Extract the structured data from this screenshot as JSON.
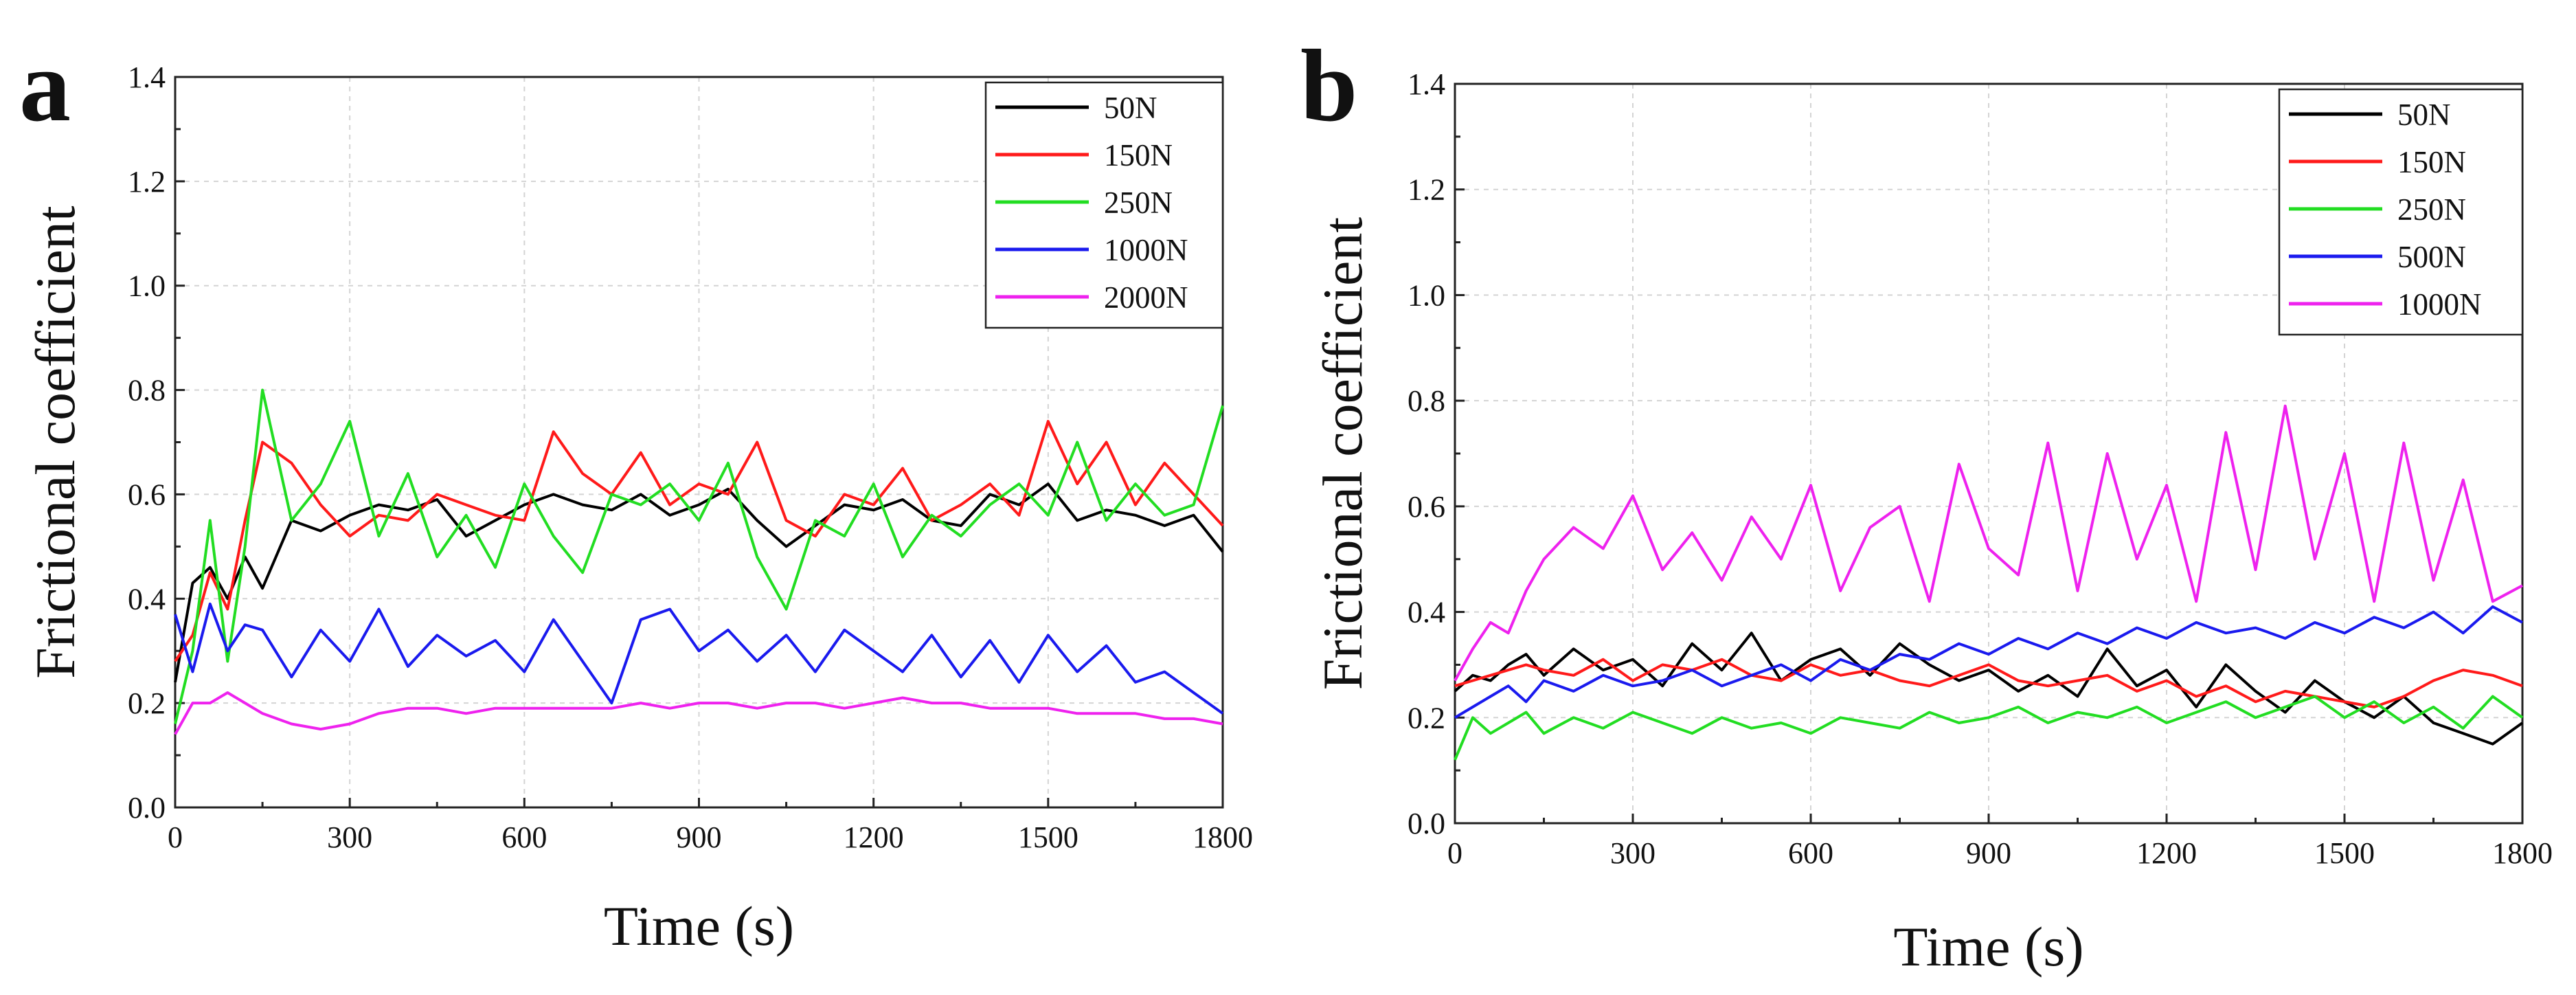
{
  "chart_data": [
    {
      "type": "line",
      "panel_label": "a",
      "title": "",
      "xlabel": "Time (s)",
      "ylabel": "Frictional coefficient",
      "xlim": [
        0,
        1800
      ],
      "ylim": [
        0.0,
        1.4
      ],
      "xticks": [
        0,
        300,
        600,
        900,
        1200,
        1500,
        1800
      ],
      "yticks": [
        0.0,
        0.2,
        0.4,
        0.6,
        0.8,
        1.0,
        1.2,
        1.4
      ],
      "xtick_labels": [
        "0",
        "300",
        "600",
        "900",
        "1200",
        "1500",
        "1800"
      ],
      "ytick_labels": [
        "0.0",
        "0.2",
        "0.4",
        "0.6",
        "0.8",
        "1.0",
        "1.2",
        "1.4"
      ],
      "grid": true,
      "legend_position": "top-right",
      "series": [
        {
          "name": "50N",
          "color": "#000000",
          "x": [
            0,
            30,
            60,
            90,
            120,
            150,
            200,
            250,
            300,
            350,
            400,
            450,
            500,
            550,
            600,
            650,
            700,
            750,
            800,
            850,
            900,
            950,
            1000,
            1050,
            1100,
            1150,
            1200,
            1250,
            1300,
            1350,
            1400,
            1450,
            1500,
            1550,
            1600,
            1650,
            1700,
            1750,
            1800
          ],
          "values": [
            0.24,
            0.43,
            0.46,
            0.4,
            0.48,
            0.42,
            0.55,
            0.53,
            0.56,
            0.58,
            0.57,
            0.59,
            0.52,
            0.55,
            0.58,
            0.6,
            0.58,
            0.57,
            0.6,
            0.56,
            0.58,
            0.61,
            0.55,
            0.5,
            0.54,
            0.58,
            0.57,
            0.59,
            0.55,
            0.54,
            0.6,
            0.58,
            0.62,
            0.55,
            0.57,
            0.56,
            0.54,
            0.56,
            0.49
          ]
        },
        {
          "name": "150N",
          "color": "#ff1a1a",
          "x": [
            0,
            30,
            60,
            90,
            120,
            150,
            200,
            250,
            300,
            350,
            400,
            450,
            500,
            550,
            600,
            650,
            700,
            750,
            800,
            850,
            900,
            950,
            1000,
            1050,
            1100,
            1150,
            1200,
            1250,
            1300,
            1350,
            1400,
            1450,
            1500,
            1550,
            1600,
            1650,
            1700,
            1750,
            1800
          ],
          "values": [
            0.28,
            0.33,
            0.45,
            0.38,
            0.55,
            0.7,
            0.66,
            0.58,
            0.52,
            0.56,
            0.55,
            0.6,
            0.58,
            0.56,
            0.55,
            0.72,
            0.64,
            0.6,
            0.68,
            0.58,
            0.62,
            0.6,
            0.7,
            0.55,
            0.52,
            0.6,
            0.58,
            0.65,
            0.55,
            0.58,
            0.62,
            0.56,
            0.74,
            0.62,
            0.7,
            0.58,
            0.66,
            0.6,
            0.54
          ]
        },
        {
          "name": "250N",
          "color": "#22dd22",
          "x": [
            0,
            30,
            60,
            90,
            120,
            150,
            200,
            250,
            300,
            350,
            400,
            450,
            500,
            550,
            600,
            650,
            700,
            750,
            800,
            850,
            900,
            950,
            1000,
            1050,
            1100,
            1150,
            1200,
            1250,
            1300,
            1350,
            1400,
            1450,
            1500,
            1550,
            1600,
            1650,
            1700,
            1750,
            1800
          ],
          "values": [
            0.16,
            0.3,
            0.55,
            0.28,
            0.5,
            0.8,
            0.55,
            0.62,
            0.74,
            0.52,
            0.64,
            0.48,
            0.56,
            0.46,
            0.62,
            0.52,
            0.45,
            0.6,
            0.58,
            0.62,
            0.55,
            0.66,
            0.48,
            0.38,
            0.55,
            0.52,
            0.62,
            0.48,
            0.56,
            0.52,
            0.58,
            0.62,
            0.56,
            0.7,
            0.55,
            0.62,
            0.56,
            0.58,
            0.77
          ]
        },
        {
          "name": "1000N",
          "color": "#1a1aee",
          "x": [
            0,
            30,
            60,
            90,
            120,
            150,
            200,
            250,
            300,
            350,
            400,
            450,
            500,
            550,
            600,
            650,
            700,
            750,
            800,
            850,
            900,
            950,
            1000,
            1050,
            1100,
            1150,
            1200,
            1250,
            1300,
            1350,
            1400,
            1450,
            1500,
            1550,
            1600,
            1650,
            1700,
            1750,
            1800
          ],
          "values": [
            0.37,
            0.26,
            0.39,
            0.3,
            0.35,
            0.34,
            0.25,
            0.34,
            0.28,
            0.38,
            0.27,
            0.33,
            0.29,
            0.32,
            0.26,
            0.36,
            0.28,
            0.2,
            0.36,
            0.38,
            0.3,
            0.34,
            0.28,
            0.33,
            0.26,
            0.34,
            0.3,
            0.26,
            0.33,
            0.25,
            0.32,
            0.24,
            0.33,
            0.26,
            0.31,
            0.24,
            0.26,
            0.22,
            0.18
          ]
        },
        {
          "name": "2000N",
          "color": "#ee22ee",
          "x": [
            0,
            30,
            60,
            90,
            120,
            150,
            200,
            250,
            300,
            350,
            400,
            450,
            500,
            550,
            600,
            650,
            700,
            750,
            800,
            850,
            900,
            950,
            1000,
            1050,
            1100,
            1150,
            1200,
            1250,
            1300,
            1350,
            1400,
            1450,
            1500,
            1550,
            1600,
            1650,
            1700,
            1750,
            1800
          ],
          "values": [
            0.14,
            0.2,
            0.2,
            0.22,
            0.2,
            0.18,
            0.16,
            0.15,
            0.16,
            0.18,
            0.19,
            0.19,
            0.18,
            0.19,
            0.19,
            0.19,
            0.19,
            0.19,
            0.2,
            0.19,
            0.2,
            0.2,
            0.19,
            0.2,
            0.2,
            0.19,
            0.2,
            0.21,
            0.2,
            0.2,
            0.19,
            0.19,
            0.19,
            0.18,
            0.18,
            0.18,
            0.17,
            0.17,
            0.16
          ]
        }
      ]
    },
    {
      "type": "line",
      "panel_label": "b",
      "title": "",
      "xlabel": "Time (s)",
      "ylabel": "Frictional coefficient",
      "xlim": [
        0,
        1800
      ],
      "ylim": [
        0.0,
        1.4
      ],
      "xticks": [
        0,
        300,
        600,
        900,
        1200,
        1500,
        1800
      ],
      "yticks": [
        0.0,
        0.2,
        0.4,
        0.6,
        0.8,
        1.0,
        1.2,
        1.4
      ],
      "xtick_labels": [
        "0",
        "300",
        "600",
        "900",
        "1200",
        "1500",
        "1800"
      ],
      "ytick_labels": [
        "0.0",
        "0.2",
        "0.4",
        "0.6",
        "0.8",
        "1.0",
        "1.2",
        "1.4"
      ],
      "grid": true,
      "legend_position": "top-right",
      "series": [
        {
          "name": "50N",
          "color": "#000000",
          "x": [
            0,
            30,
            60,
            90,
            120,
            150,
            200,
            250,
            300,
            350,
            400,
            450,
            500,
            550,
            600,
            650,
            700,
            750,
            800,
            850,
            900,
            950,
            1000,
            1050,
            1100,
            1150,
            1200,
            1250,
            1300,
            1350,
            1400,
            1450,
            1500,
            1550,
            1600,
            1650,
            1700,
            1750,
            1800
          ],
          "values": [
            0.25,
            0.28,
            0.27,
            0.3,
            0.32,
            0.28,
            0.33,
            0.29,
            0.31,
            0.26,
            0.34,
            0.29,
            0.36,
            0.27,
            0.31,
            0.33,
            0.28,
            0.34,
            0.3,
            0.27,
            0.29,
            0.25,
            0.28,
            0.24,
            0.33,
            0.26,
            0.29,
            0.22,
            0.3,
            0.25,
            0.21,
            0.27,
            0.23,
            0.2,
            0.24,
            0.19,
            0.17,
            0.15,
            0.19
          ]
        },
        {
          "name": "150N",
          "color": "#ff1a1a",
          "x": [
            0,
            30,
            60,
            90,
            120,
            150,
            200,
            250,
            300,
            350,
            400,
            450,
            500,
            550,
            600,
            650,
            700,
            750,
            800,
            850,
            900,
            950,
            1000,
            1050,
            1100,
            1150,
            1200,
            1250,
            1300,
            1350,
            1400,
            1450,
            1500,
            1550,
            1600,
            1650,
            1700,
            1750,
            1800
          ],
          "values": [
            0.26,
            0.27,
            0.28,
            0.29,
            0.3,
            0.29,
            0.28,
            0.31,
            0.27,
            0.3,
            0.29,
            0.31,
            0.28,
            0.27,
            0.3,
            0.28,
            0.29,
            0.27,
            0.26,
            0.28,
            0.3,
            0.27,
            0.26,
            0.27,
            0.28,
            0.25,
            0.27,
            0.24,
            0.26,
            0.23,
            0.25,
            0.24,
            0.23,
            0.22,
            0.24,
            0.27,
            0.29,
            0.28,
            0.26
          ]
        },
        {
          "name": "250N",
          "color": "#22dd22",
          "x": [
            0,
            30,
            60,
            90,
            120,
            150,
            200,
            250,
            300,
            350,
            400,
            450,
            500,
            550,
            600,
            650,
            700,
            750,
            800,
            850,
            900,
            950,
            1000,
            1050,
            1100,
            1150,
            1200,
            1250,
            1300,
            1350,
            1400,
            1450,
            1500,
            1550,
            1600,
            1650,
            1700,
            1750,
            1800
          ],
          "values": [
            0.12,
            0.2,
            0.17,
            0.19,
            0.21,
            0.17,
            0.2,
            0.18,
            0.21,
            0.19,
            0.17,
            0.2,
            0.18,
            0.19,
            0.17,
            0.2,
            0.19,
            0.18,
            0.21,
            0.19,
            0.2,
            0.22,
            0.19,
            0.21,
            0.2,
            0.22,
            0.19,
            0.21,
            0.23,
            0.2,
            0.22,
            0.24,
            0.2,
            0.23,
            0.19,
            0.22,
            0.18,
            0.24,
            0.2
          ]
        },
        {
          "name": "500N",
          "color": "#1a1aee",
          "x": [
            0,
            30,
            60,
            90,
            120,
            150,
            200,
            250,
            300,
            350,
            400,
            450,
            500,
            550,
            600,
            650,
            700,
            750,
            800,
            850,
            900,
            950,
            1000,
            1050,
            1100,
            1150,
            1200,
            1250,
            1300,
            1350,
            1400,
            1450,
            1500,
            1550,
            1600,
            1650,
            1700,
            1750,
            1800
          ],
          "values": [
            0.2,
            0.22,
            0.24,
            0.26,
            0.23,
            0.27,
            0.25,
            0.28,
            0.26,
            0.27,
            0.29,
            0.26,
            0.28,
            0.3,
            0.27,
            0.31,
            0.29,
            0.32,
            0.31,
            0.34,
            0.32,
            0.35,
            0.33,
            0.36,
            0.34,
            0.37,
            0.35,
            0.38,
            0.36,
            0.37,
            0.35,
            0.38,
            0.36,
            0.39,
            0.37,
            0.4,
            0.36,
            0.41,
            0.38
          ]
        },
        {
          "name": "1000N",
          "color": "#ee22ee",
          "x": [
            0,
            30,
            60,
            90,
            120,
            150,
            200,
            250,
            300,
            350,
            400,
            450,
            500,
            550,
            600,
            650,
            700,
            750,
            800,
            850,
            900,
            950,
            1000,
            1050,
            1100,
            1150,
            1200,
            1250,
            1300,
            1350,
            1400,
            1450,
            1500,
            1550,
            1600,
            1650,
            1700,
            1750,
            1800
          ],
          "values": [
            0.27,
            0.33,
            0.38,
            0.36,
            0.44,
            0.5,
            0.56,
            0.52,
            0.62,
            0.48,
            0.55,
            0.46,
            0.58,
            0.5,
            0.64,
            0.44,
            0.56,
            0.6,
            0.42,
            0.68,
            0.52,
            0.47,
            0.72,
            0.44,
            0.7,
            0.5,
            0.64,
            0.42,
            0.74,
            0.48,
            0.79,
            0.5,
            0.7,
            0.42,
            0.72,
            0.46,
            0.65,
            0.42,
            0.45
          ]
        }
      ]
    }
  ]
}
